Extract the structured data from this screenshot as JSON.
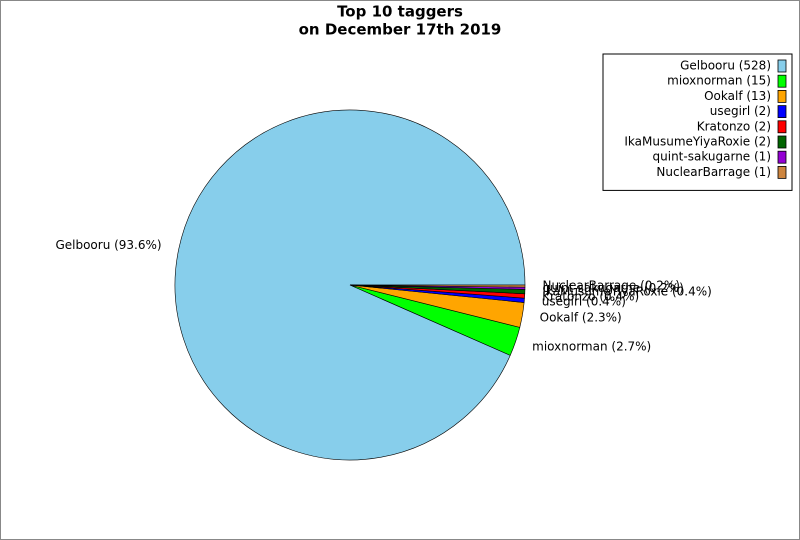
{
  "chart_data": {
    "type": "pie",
    "title": [
      "Top 10 taggers",
      "on December 17th 2019"
    ],
    "categories": [
      "Gelbooru (528)",
      "mioxnorman (15)",
      "Ookalf (13)",
      "usegirl (2)",
      "Kratonzo (2)",
      "IkaMusumeYiyaRoxie (2)",
      "quint-sakugarne (1)",
      "NuclearBarrage (1)"
    ],
    "values": [
      93.6,
      2.7,
      2.3,
      0.4,
      0.4,
      0.4,
      0.2,
      0.2
    ],
    "value_labels": [
      "Gelbooru (93.6%)",
      "mioxnorman (2.7%)",
      "Ookalf (2.3%)",
      "usegirl (0.4%)",
      "Kratonzo (0.4%)",
      "IkaMusumeYiyaRoxie (0.4%)",
      "quint-sakugarne (0.2%)",
      "NuclearBarrage (0.2%)"
    ],
    "colors": [
      "#87ceeb",
      "#00ff00",
      "#ffa500",
      "#0000ff",
      "#ff0000",
      "#006400",
      "#9400d3",
      "#cd853f"
    ],
    "legend": "upper right"
  }
}
